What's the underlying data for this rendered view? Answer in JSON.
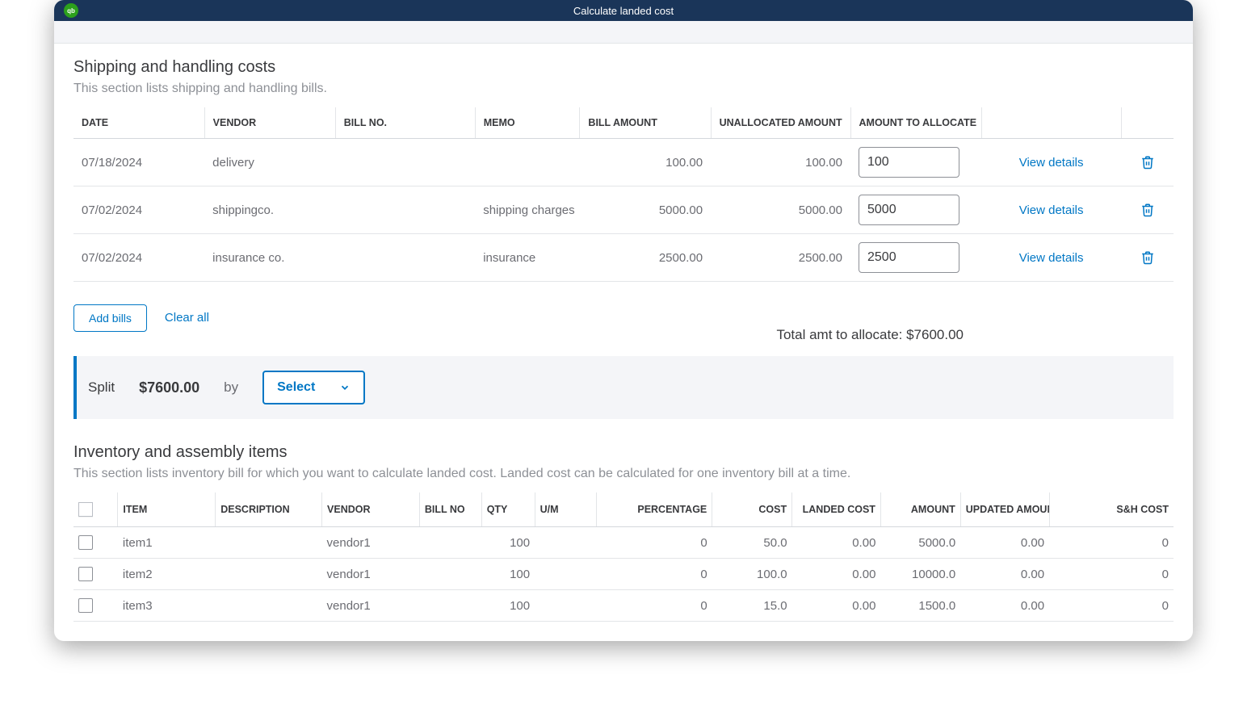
{
  "window": {
    "title": "Calculate landed cost",
    "qb_abbr": "qb"
  },
  "shipping": {
    "title": "Shipping and handling costs",
    "subtitle": "This section lists shipping and handling bills.",
    "columns": {
      "date": "DATE",
      "vendor": "VENDOR",
      "bill_no": "BILL NO.",
      "memo": "MEMO",
      "bill_amount": "BILL AMOUNT",
      "unallocated": "UNALLOCATED AMOUNT",
      "to_allocate": "AMOUNT TO ALLOCATE"
    },
    "rows": [
      {
        "date": "07/18/2024",
        "vendor": "delivery",
        "bill_no": "",
        "memo": "",
        "bill_amount": "100.00",
        "unallocated": "100.00",
        "to_allocate": "100",
        "view": "View details"
      },
      {
        "date": "07/02/2024",
        "vendor": "shippingco.",
        "bill_no": "",
        "memo": "shipping charges",
        "bill_amount": "5000.00",
        "unallocated": "5000.00",
        "to_allocate": "5000",
        "view": "View details"
      },
      {
        "date": "07/02/2024",
        "vendor": "insurance co.",
        "bill_no": "",
        "memo": "insurance",
        "bill_amount": "2500.00",
        "unallocated": "2500.00",
        "to_allocate": "2500",
        "view": "View details"
      }
    ],
    "add_bills": "Add bills",
    "clear_all": "Clear all",
    "total_label": "Total amt to allocate: $7600.00"
  },
  "split": {
    "label": "Split",
    "amount": "$7600.00",
    "by": "by",
    "select": "Select"
  },
  "inventory": {
    "title": "Inventory and assembly items",
    "subtitle": "This section lists inventory bill for which you want to calculate landed cost. Landed cost can be calculated for one inventory bill at a time.",
    "columns": {
      "item": "ITEM",
      "description": "DESCRIPTION",
      "vendor": "VENDOR",
      "bill_no": "BILL NO",
      "qty": "QTY",
      "um": "U/M",
      "percentage": "PERCENTAGE",
      "cost": "COST",
      "landed_cost": "LANDED COST",
      "amount": "AMOUNT",
      "updated_amount": "UPDATED AMOUNT",
      "sh_cost": "S&H COST"
    },
    "rows": [
      {
        "item": "item1",
        "description": "",
        "vendor": "vendor1",
        "bill_no": "",
        "qty": "100",
        "um": "",
        "percentage": "0",
        "cost": "50.0",
        "landed_cost": "0.00",
        "amount": "5000.0",
        "updated_amount": "0.00",
        "sh_cost": "0"
      },
      {
        "item": "item2",
        "description": "",
        "vendor": "vendor1",
        "bill_no": "",
        "qty": "100",
        "um": "",
        "percentage": "0",
        "cost": "100.0",
        "landed_cost": "0.00",
        "amount": "10000.0",
        "updated_amount": "0.00",
        "sh_cost": "0"
      },
      {
        "item": "item3",
        "description": "",
        "vendor": "vendor1",
        "bill_no": "",
        "qty": "100",
        "um": "",
        "percentage": "0",
        "cost": "15.0",
        "landed_cost": "0.00",
        "amount": "1500.0",
        "updated_amount": "0.00",
        "sh_cost": "0"
      }
    ]
  },
  "colors": {
    "titlebar_bg": "#1a3559",
    "qb_badge": "#2ca01c",
    "accent": "#0077c5",
    "text": "#393a3d",
    "muted": "#8d9096",
    "border": "#d4d7dc",
    "split_bg": "#f4f5f8"
  }
}
